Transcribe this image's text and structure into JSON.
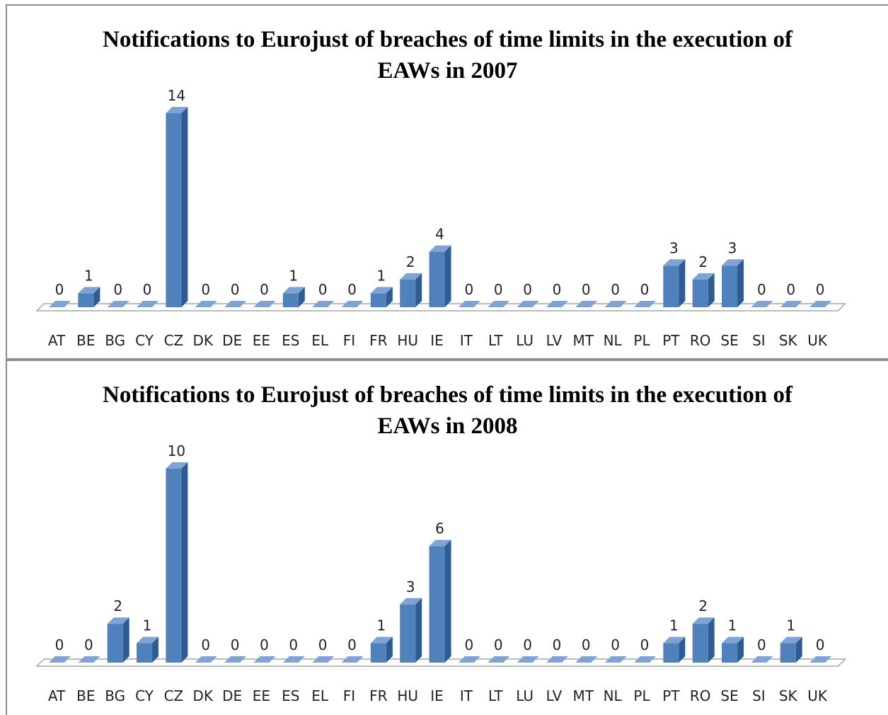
{
  "chart_data": [
    {
      "type": "bar3d",
      "title": "Notifications to Eurojust of breaches of time limits in the execution of EAWs in 2007",
      "categories": [
        "AT",
        "BE",
        "BG",
        "CY",
        "CZ",
        "DK",
        "DE",
        "EE",
        "ES",
        "EL",
        "FI",
        "FR",
        "HU",
        "IE",
        "IT",
        "LT",
        "LU",
        "LV",
        "MT",
        "NL",
        "PL",
        "PT",
        "RO",
        "SE",
        "SI",
        "SK",
        "UK"
      ],
      "values": [
        0,
        1,
        0,
        0,
        14,
        0,
        0,
        0,
        1,
        0,
        0,
        1,
        2,
        4,
        0,
        0,
        0,
        0,
        0,
        0,
        0,
        3,
        2,
        3,
        0,
        0,
        0
      ],
      "color": "#4f81bd"
    },
    {
      "type": "bar3d",
      "title": "Notifications to Eurojust of breaches of time limits in the execution of EAWs in 2008",
      "categories": [
        "AT",
        "BE",
        "BG",
        "CY",
        "CZ",
        "DK",
        "DE",
        "EE",
        "ES",
        "EL",
        "FI",
        "FR",
        "HU",
        "IE",
        "IT",
        "LT",
        "LU",
        "LV",
        "MT",
        "NL",
        "PL",
        "PT",
        "RO",
        "SE",
        "SI",
        "SK",
        "UK"
      ],
      "values": [
        0,
        0,
        2,
        1,
        10,
        0,
        0,
        0,
        0,
        0,
        0,
        1,
        3,
        6,
        0,
        0,
        0,
        0,
        0,
        0,
        0,
        1,
        2,
        1,
        0,
        1,
        0
      ],
      "color": "#4f81bd"
    }
  ]
}
